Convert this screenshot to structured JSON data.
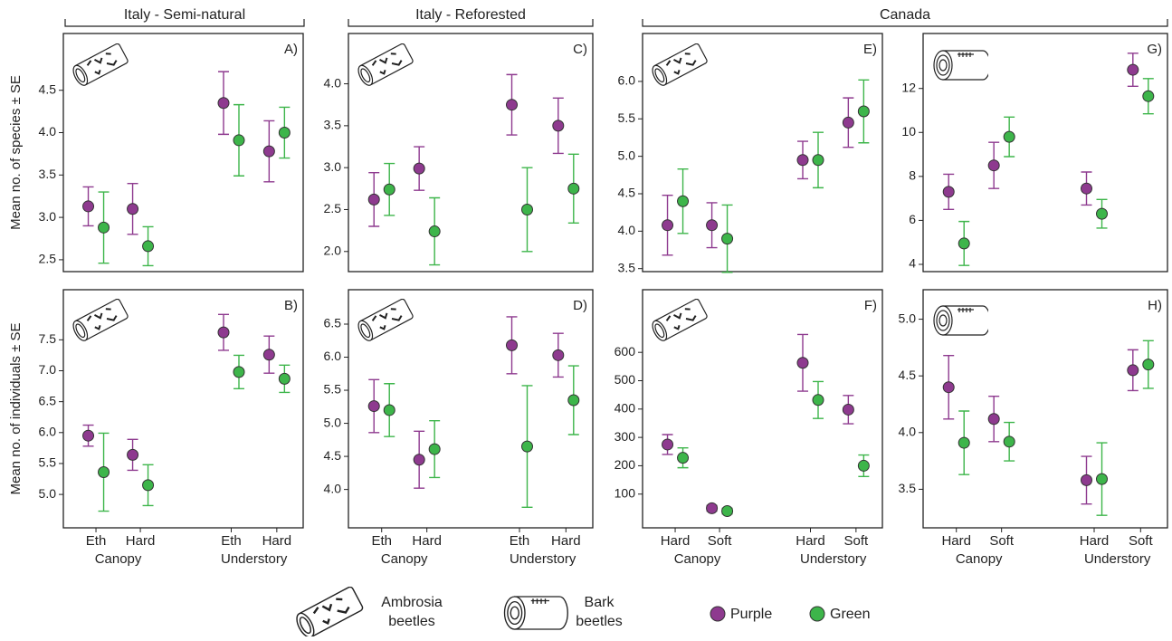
{
  "column_headers": [
    "Italy - Semi-natural",
    "Italy - Reforested",
    "Canada"
  ],
  "legend_icons": [
    {
      "label": [
        "Ambrosia",
        "beetles"
      ]
    },
    {
      "label": [
        "Bark",
        "beetles"
      ]
    }
  ],
  "chart_data": [
    {
      "type": "errorbar",
      "title": "A)",
      "y_label": "Mean no. of species ± SE",
      "ylim": [
        2.36,
        5.17
      ],
      "yticks": [
        2.5,
        {
          "value": 3,
          "label": "3.0"
        },
        3.5,
        {
          "value": 4,
          "label": "4.0"
        },
        4.5
      ],
      "series": [
        {
          "name": "Purple",
          "color": "#8e3a8f",
          "values": [
            3.13,
            3.1,
            4.35,
            3.78
          ],
          "errors": [
            0.23,
            0.3,
            0.37,
            0.36
          ]
        },
        {
          "name": "Green",
          "color": "#3db54a",
          "values": [
            2.88,
            2.66,
            3.91,
            4.0
          ],
          "errors": [
            0.42,
            0.23,
            0.42,
            0.3
          ]
        }
      ]
    },
    {
      "type": "errorbar",
      "title": "B)",
      "y_label": "Mean no. of individuals ± SE",
      "ylim": [
        4.46,
        8.31
      ],
      "yticks": [
        {
          "value": 5,
          "label": "5.0"
        },
        5.5,
        {
          "value": 6,
          "label": "6.0"
        },
        6.5,
        {
          "value": 7,
          "label": "7.0"
        },
        7.5
      ],
      "categories": [
        "Eth",
        "Hard",
        "Eth",
        "Hard"
      ],
      "groups": [
        "Canopy",
        "Understory"
      ],
      "series": [
        {
          "name": "Purple",
          "color": "#8e3a8f",
          "values": [
            5.95,
            5.64,
            7.62,
            7.26
          ],
          "errors": [
            0.17,
            0.25,
            0.29,
            0.3
          ]
        },
        {
          "name": "Green",
          "color": "#3db54a",
          "values": [
            5.36,
            5.15,
            6.98,
            6.87
          ],
          "errors": [
            0.63,
            0.33,
            0.27,
            0.22
          ]
        }
      ]
    },
    {
      "type": "errorbar",
      "title": "C)",
      "ylim": [
        1.76,
        4.6
      ],
      "yticks": [
        {
          "value": 2,
          "label": "2.0"
        },
        2.5,
        {
          "value": 3,
          "label": "3.0"
        },
        3.5,
        {
          "value": 4,
          "label": "4.0"
        }
      ],
      "series": [
        {
          "name": "Purple",
          "color": "#8e3a8f",
          "values": [
            2.62,
            2.99,
            3.75,
            3.5
          ],
          "errors": [
            0.32,
            0.26,
            0.36,
            0.33
          ]
        },
        {
          "name": "Green",
          "color": "#3db54a",
          "values": [
            2.74,
            2.24,
            2.5,
            2.75
          ],
          "errors": [
            0.31,
            0.4,
            0.5,
            0.41
          ]
        }
      ]
    },
    {
      "type": "errorbar",
      "title": "D)",
      "ylim": [
        3.42,
        7.02
      ],
      "yticks": [
        {
          "value": 4,
          "label": "4.0"
        },
        4.5,
        {
          "value": 5,
          "label": "5.0"
        },
        5.5,
        {
          "value": 6,
          "label": "6.0"
        },
        6.5
      ],
      "categories": [
        "Eth",
        "Hard",
        "Eth",
        "Hard"
      ],
      "groups": [
        "Canopy",
        "Understory"
      ],
      "series": [
        {
          "name": "Purple",
          "color": "#8e3a8f",
          "values": [
            5.26,
            4.45,
            6.18,
            6.03
          ],
          "errors": [
            0.4,
            0.43,
            0.43,
            0.33
          ]
        },
        {
          "name": "Green",
          "color": "#3db54a",
          "values": [
            5.2,
            4.61,
            4.65,
            5.35
          ],
          "errors": [
            0.4,
            0.43,
            0.92,
            0.52
          ]
        }
      ]
    },
    {
      "type": "errorbar",
      "title": "E)",
      "ylim": [
        3.46,
        6.64
      ],
      "yticks": [
        3.5,
        {
          "value": 4,
          "label": "4.0"
        },
        4.5,
        {
          "value": 5,
          "label": "5.0"
        },
        5.5,
        {
          "value": 6,
          "label": "6.0"
        }
      ],
      "series": [
        {
          "name": "Purple",
          "color": "#8e3a8f",
          "values": [
            4.08,
            4.08,
            4.95,
            5.45
          ],
          "errors": [
            0.4,
            0.3,
            0.25,
            0.33
          ]
        },
        {
          "name": "Green",
          "color": "#3db54a",
          "values": [
            4.4,
            3.9,
            4.95,
            5.6
          ],
          "errors": [
            0.43,
            0.45,
            0.37,
            0.42
          ]
        }
      ]
    },
    {
      "type": "errorbar",
      "title": "F)",
      "ylim": [
        -19,
        821
      ],
      "yticks": [
        100,
        200,
        300,
        400,
        500,
        600
      ],
      "categories": [
        "Hard",
        "Soft",
        "Hard",
        "Soft"
      ],
      "groups": [
        "Canopy",
        "Understory"
      ],
      "series": [
        {
          "name": "Purple",
          "color": "#8e3a8f",
          "values": [
            275,
            50,
            563,
            398
          ],
          "errors": [
            35,
            10,
            100,
            50
          ]
        },
        {
          "name": "Green",
          "color": "#3db54a",
          "values": [
            228,
            40,
            432,
            200
          ],
          "errors": [
            35,
            10,
            65,
            38
          ]
        }
      ]
    },
    {
      "type": "errorbar",
      "title": "G)",
      "ylim": [
        3.67,
        14.5
      ],
      "yticks": [
        4,
        6,
        8,
        10,
        12
      ],
      "series": [
        {
          "name": "Purple",
          "color": "#8e3a8f",
          "values": [
            7.3,
            8.5,
            7.45,
            12.85
          ],
          "errors": [
            0.8,
            1.05,
            0.75,
            0.75
          ]
        },
        {
          "name": "Green",
          "color": "#3db54a",
          "values": [
            4.95,
            9.8,
            6.3,
            11.65
          ],
          "errors": [
            1.0,
            0.9,
            0.65,
            0.8
          ]
        }
      ]
    },
    {
      "type": "errorbar",
      "title": "H)",
      "ylim": [
        3.16,
        5.26
      ],
      "yticks": [
        3.5,
        {
          "value": 4,
          "label": "4.0"
        },
        4.5,
        {
          "value": 5,
          "label": "5.0"
        }
      ],
      "categories": [
        "Hard",
        "Soft",
        "Hard",
        "Soft"
      ],
      "groups": [
        "Canopy",
        "Understory"
      ],
      "series": [
        {
          "name": "Purple",
          "color": "#8e3a8f",
          "values": [
            4.4,
            4.12,
            3.58,
            4.55
          ],
          "errors": [
            0.28,
            0.2,
            0.21,
            0.18
          ]
        },
        {
          "name": "Green",
          "color": "#3db54a",
          "values": [
            3.91,
            3.92,
            3.59,
            4.6
          ],
          "errors": [
            0.28,
            0.17,
            0.32,
            0.21
          ]
        }
      ]
    }
  ]
}
